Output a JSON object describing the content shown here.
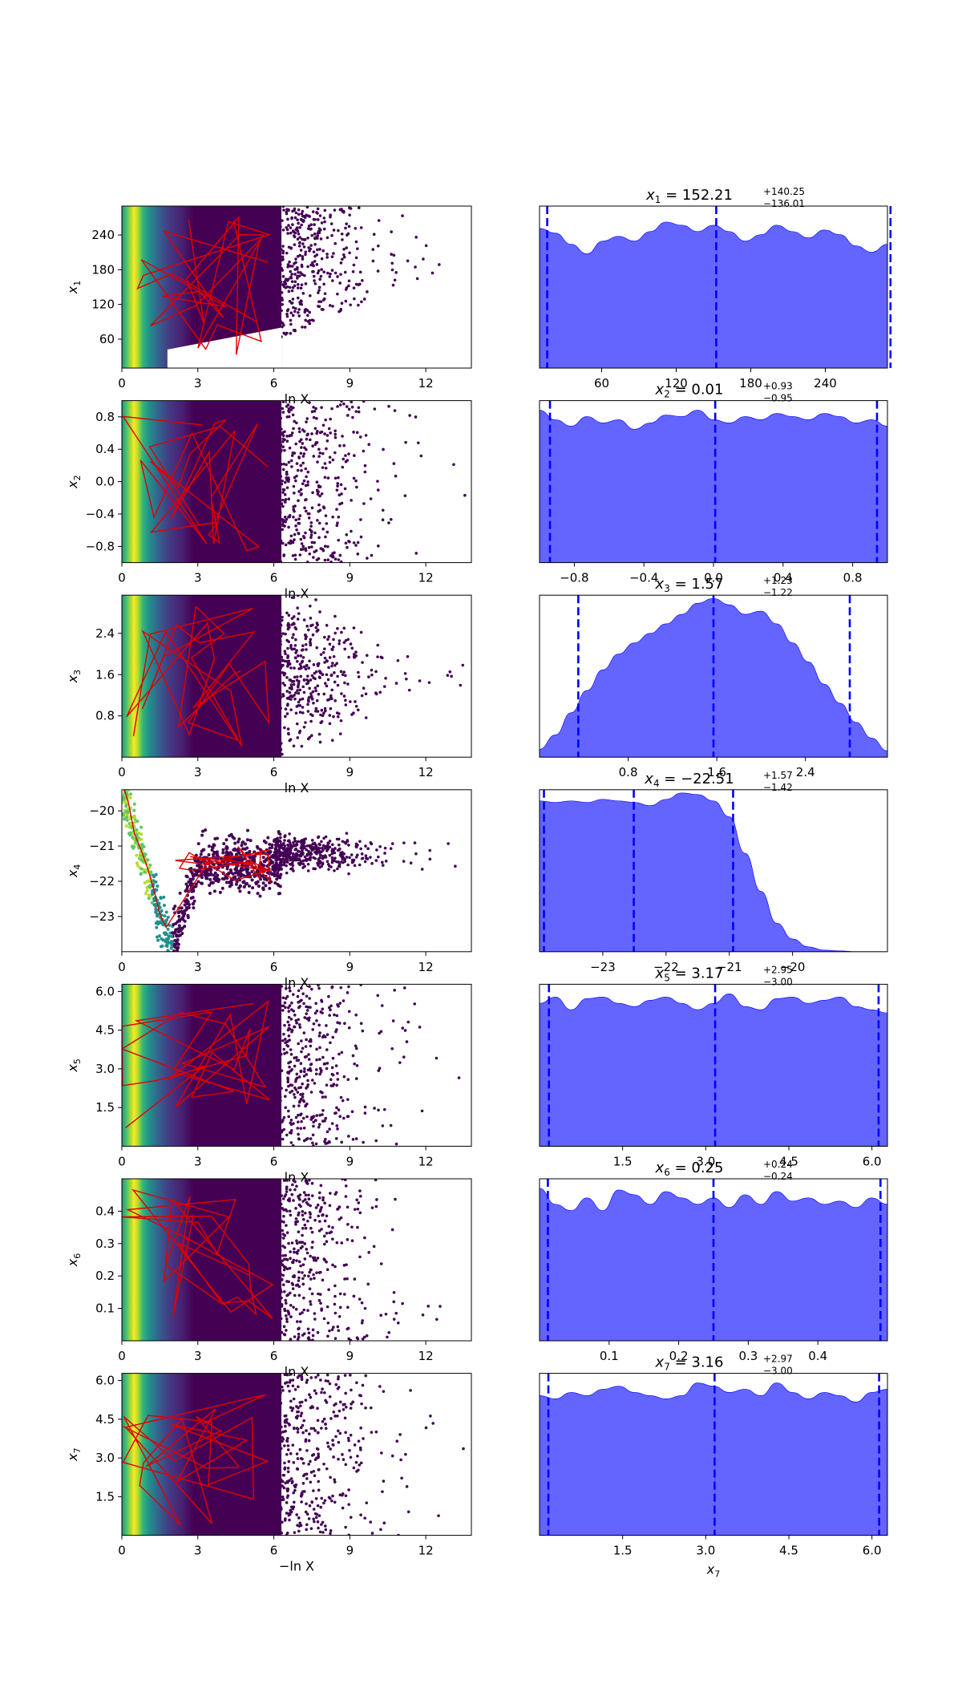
{
  "chart_data": {
    "type": "figure",
    "description": "Trace plot grid: left column scatter of samples vs -ln X with red path overlay; right column marginal posterior densities with dashed median and credible bounds",
    "colors": {
      "density_fill": "#6464ff",
      "density_edge": "#0000ff",
      "quantile_line": "#0000ff",
      "path_line": "#e00000",
      "scatter_low": "#440154",
      "scatter_high": "#fde725"
    },
    "trace_xlabel": "−ln X",
    "trace_xlabel_short": "ln X",
    "trace_xlim": [
      0,
      13.8
    ],
    "trace_xticks": [
      "0",
      "3",
      "6",
      "9",
      "12"
    ],
    "parameters": [
      {
        "symbol": "x",
        "sub": "1",
        "median": "152.21",
        "upper": "+140.25",
        "lower": "−136.01",
        "range": [
          10,
          290
        ],
        "trace_yticks": [
          {
            "v": 60,
            "t": "60"
          },
          {
            "v": 120,
            "t": "120"
          },
          {
            "v": 180,
            "t": "180"
          },
          {
            "v": 240,
            "t": "240"
          }
        ],
        "hist_xticks": [
          {
            "v": 60,
            "t": "60"
          },
          {
            "v": 120,
            "t": "120"
          },
          {
            "v": 180,
            "t": "180"
          },
          {
            "v": 240,
            "t": "240"
          }
        ],
        "quantiles": [
          16.2,
          152.21,
          292.46
        ],
        "density": [
          0.88,
          0.85,
          0.78,
          0.72,
          0.8,
          0.83,
          0.8,
          0.86,
          0.92,
          0.9,
          0.86,
          0.9,
          0.86,
          0.8,
          0.84,
          0.9,
          0.86,
          0.82,
          0.87,
          0.84,
          0.77,
          0.73,
          0.78
        ]
      },
      {
        "symbol": "x",
        "sub": "2",
        "median": "0.01",
        "upper": "+0.93",
        "lower": "−0.95",
        "range": [
          -1,
          1
        ],
        "trace_yticks": [
          {
            "v": -0.8,
            "t": "−0.8"
          },
          {
            "v": -0.4,
            "t": "−0.4"
          },
          {
            "v": 0.0,
            "t": "0.0"
          },
          {
            "v": 0.4,
            "t": "0.4"
          },
          {
            "v": 0.8,
            "t": "0.8"
          }
        ],
        "hist_xticks": [
          {
            "v": -0.8,
            "t": "−0.8"
          },
          {
            "v": -0.4,
            "t": "−0.4"
          },
          {
            "v": 0.0,
            "t": "0.0"
          },
          {
            "v": 0.4,
            "t": "0.4"
          },
          {
            "v": 0.8,
            "t": "0.8"
          }
        ],
        "quantiles": [
          -0.94,
          0.01,
          0.94
        ],
        "density": [
          0.96,
          0.9,
          0.86,
          0.92,
          0.88,
          0.9,
          0.84,
          0.88,
          0.93,
          0.92,
          0.96,
          0.9,
          0.88,
          0.92,
          0.9,
          0.94,
          0.92,
          0.9,
          0.94,
          0.92,
          0.88,
          0.9,
          0.86
        ]
      },
      {
        "symbol": "x",
        "sub": "3",
        "median": "1.57",
        "upper": "+1.23",
        "lower": "−1.22",
        "range": [
          0,
          3.14
        ],
        "trace_yticks": [
          {
            "v": 0.8,
            "t": "0.8"
          },
          {
            "v": 1.6,
            "t": "1.6"
          },
          {
            "v": 2.4,
            "t": "2.4"
          }
        ],
        "hist_xticks": [
          {
            "v": 0.8,
            "t": "0.8"
          },
          {
            "v": 1.6,
            "t": "1.6"
          },
          {
            "v": 2.4,
            "t": "2.4"
          }
        ],
        "quantiles": [
          0.35,
          1.57,
          2.8
        ],
        "density": [
          0.05,
          0.14,
          0.28,
          0.42,
          0.55,
          0.65,
          0.72,
          0.78,
          0.84,
          0.9,
          0.97,
          1.0,
          0.96,
          0.9,
          0.92,
          0.84,
          0.72,
          0.6,
          0.46,
          0.34,
          0.22,
          0.12,
          0.04
        ]
      },
      {
        "symbol": "x",
        "sub": "4",
        "median": "−22.51",
        "upper": "+1.57",
        "lower": "−1.42",
        "range": [
          -24.0,
          -18.5
        ],
        "trace_yticks": [
          {
            "v": -23,
            "t": "−23"
          },
          {
            "v": -22,
            "t": "−22"
          },
          {
            "v": -21,
            "t": "−21"
          },
          {
            "v": -20,
            "t": "−20"
          }
        ],
        "trace_ylim": [
          -24.0,
          -19.4
        ],
        "hist_xticks": [
          {
            "v": -23,
            "t": "−23"
          },
          {
            "v": -22,
            "t": "−22"
          },
          {
            "v": -21,
            "t": "−21"
          },
          {
            "v": -20,
            "t": "−20"
          }
        ],
        "quantiles": [
          -23.93,
          -22.51,
          -20.94
        ],
        "density": [
          0.95,
          0.94,
          0.95,
          0.94,
          0.96,
          0.95,
          0.94,
          0.92,
          0.96,
          1.0,
          0.99,
          0.95,
          0.85,
          0.62,
          0.38,
          0.18,
          0.08,
          0.03,
          0.01,
          0.005,
          0.0,
          0.0,
          0.0
        ]
      },
      {
        "symbol": "x",
        "sub": "5",
        "median": "3.17",
        "upper": "+2.95",
        "lower": "−3.00",
        "range": [
          0,
          6.28
        ],
        "trace_yticks": [
          {
            "v": 1.5,
            "t": "1.5"
          },
          {
            "v": 3.0,
            "t": "3.0"
          },
          {
            "v": 4.5,
            "t": "4.5"
          },
          {
            "v": 6.0,
            "t": "6.0"
          }
        ],
        "hist_xticks": [
          {
            "v": 1.5,
            "t": "1.5"
          },
          {
            "v": 3.0,
            "t": "3.0"
          },
          {
            "v": 4.5,
            "t": "4.5"
          },
          {
            "v": 6.0,
            "t": "6.0"
          }
        ],
        "quantiles": [
          0.17,
          3.17,
          6.12
        ],
        "density": [
          0.9,
          0.94,
          0.86,
          0.93,
          0.94,
          0.9,
          0.88,
          0.92,
          0.94,
          0.9,
          0.86,
          0.9,
          0.96,
          0.88,
          0.86,
          0.93,
          0.94,
          0.9,
          0.92,
          0.94,
          0.88,
          0.86,
          0.84
        ]
      },
      {
        "symbol": "x",
        "sub": "6",
        "median": "0.25",
        "upper": "+0.24",
        "lower": "−0.24",
        "range": [
          0,
          0.5
        ],
        "trace_yticks": [
          {
            "v": 0.1,
            "t": "0.1"
          },
          {
            "v": 0.2,
            "t": "0.2"
          },
          {
            "v": 0.3,
            "t": "0.3"
          },
          {
            "v": 0.4,
            "t": "0.4"
          }
        ],
        "hist_xticks": [
          {
            "v": 0.1,
            "t": "0.1"
          },
          {
            "v": 0.2,
            "t": "0.2"
          },
          {
            "v": 0.3,
            "t": "0.3"
          },
          {
            "v": 0.4,
            "t": "0.4"
          }
        ],
        "quantiles": [
          0.012,
          0.25,
          0.49
        ],
        "density": [
          0.96,
          0.86,
          0.82,
          0.9,
          0.82,
          0.95,
          0.92,
          0.86,
          0.94,
          0.9,
          0.86,
          0.9,
          0.84,
          0.92,
          0.86,
          0.94,
          0.88,
          0.9,
          0.86,
          0.88,
          0.84,
          0.9,
          0.86
        ]
      },
      {
        "symbol": "x",
        "sub": "7",
        "median": "3.16",
        "upper": "+2.97",
        "lower": "−3.00",
        "range": [
          0,
          6.28
        ],
        "trace_yticks": [
          {
            "v": 1.5,
            "t": "1.5"
          },
          {
            "v": 3.0,
            "t": "3.0"
          },
          {
            "v": 4.5,
            "t": "4.5"
          },
          {
            "v": 6.0,
            "t": "6.0"
          }
        ],
        "hist_xticks": [
          {
            "v": 1.5,
            "t": "1.5"
          },
          {
            "v": 3.0,
            "t": "3.0"
          },
          {
            "v": 4.5,
            "t": "4.5"
          },
          {
            "v": 6.0,
            "t": "6.0"
          }
        ],
        "quantiles": [
          0.16,
          3.16,
          6.13
        ],
        "density": [
          0.88,
          0.86,
          0.9,
          0.88,
          0.92,
          0.94,
          0.9,
          0.88,
          0.86,
          0.88,
          0.96,
          0.94,
          0.9,
          0.92,
          0.88,
          0.96,
          0.9,
          0.86,
          0.9,
          0.88,
          0.84,
          0.9,
          0.92
        ]
      }
    ]
  }
}
